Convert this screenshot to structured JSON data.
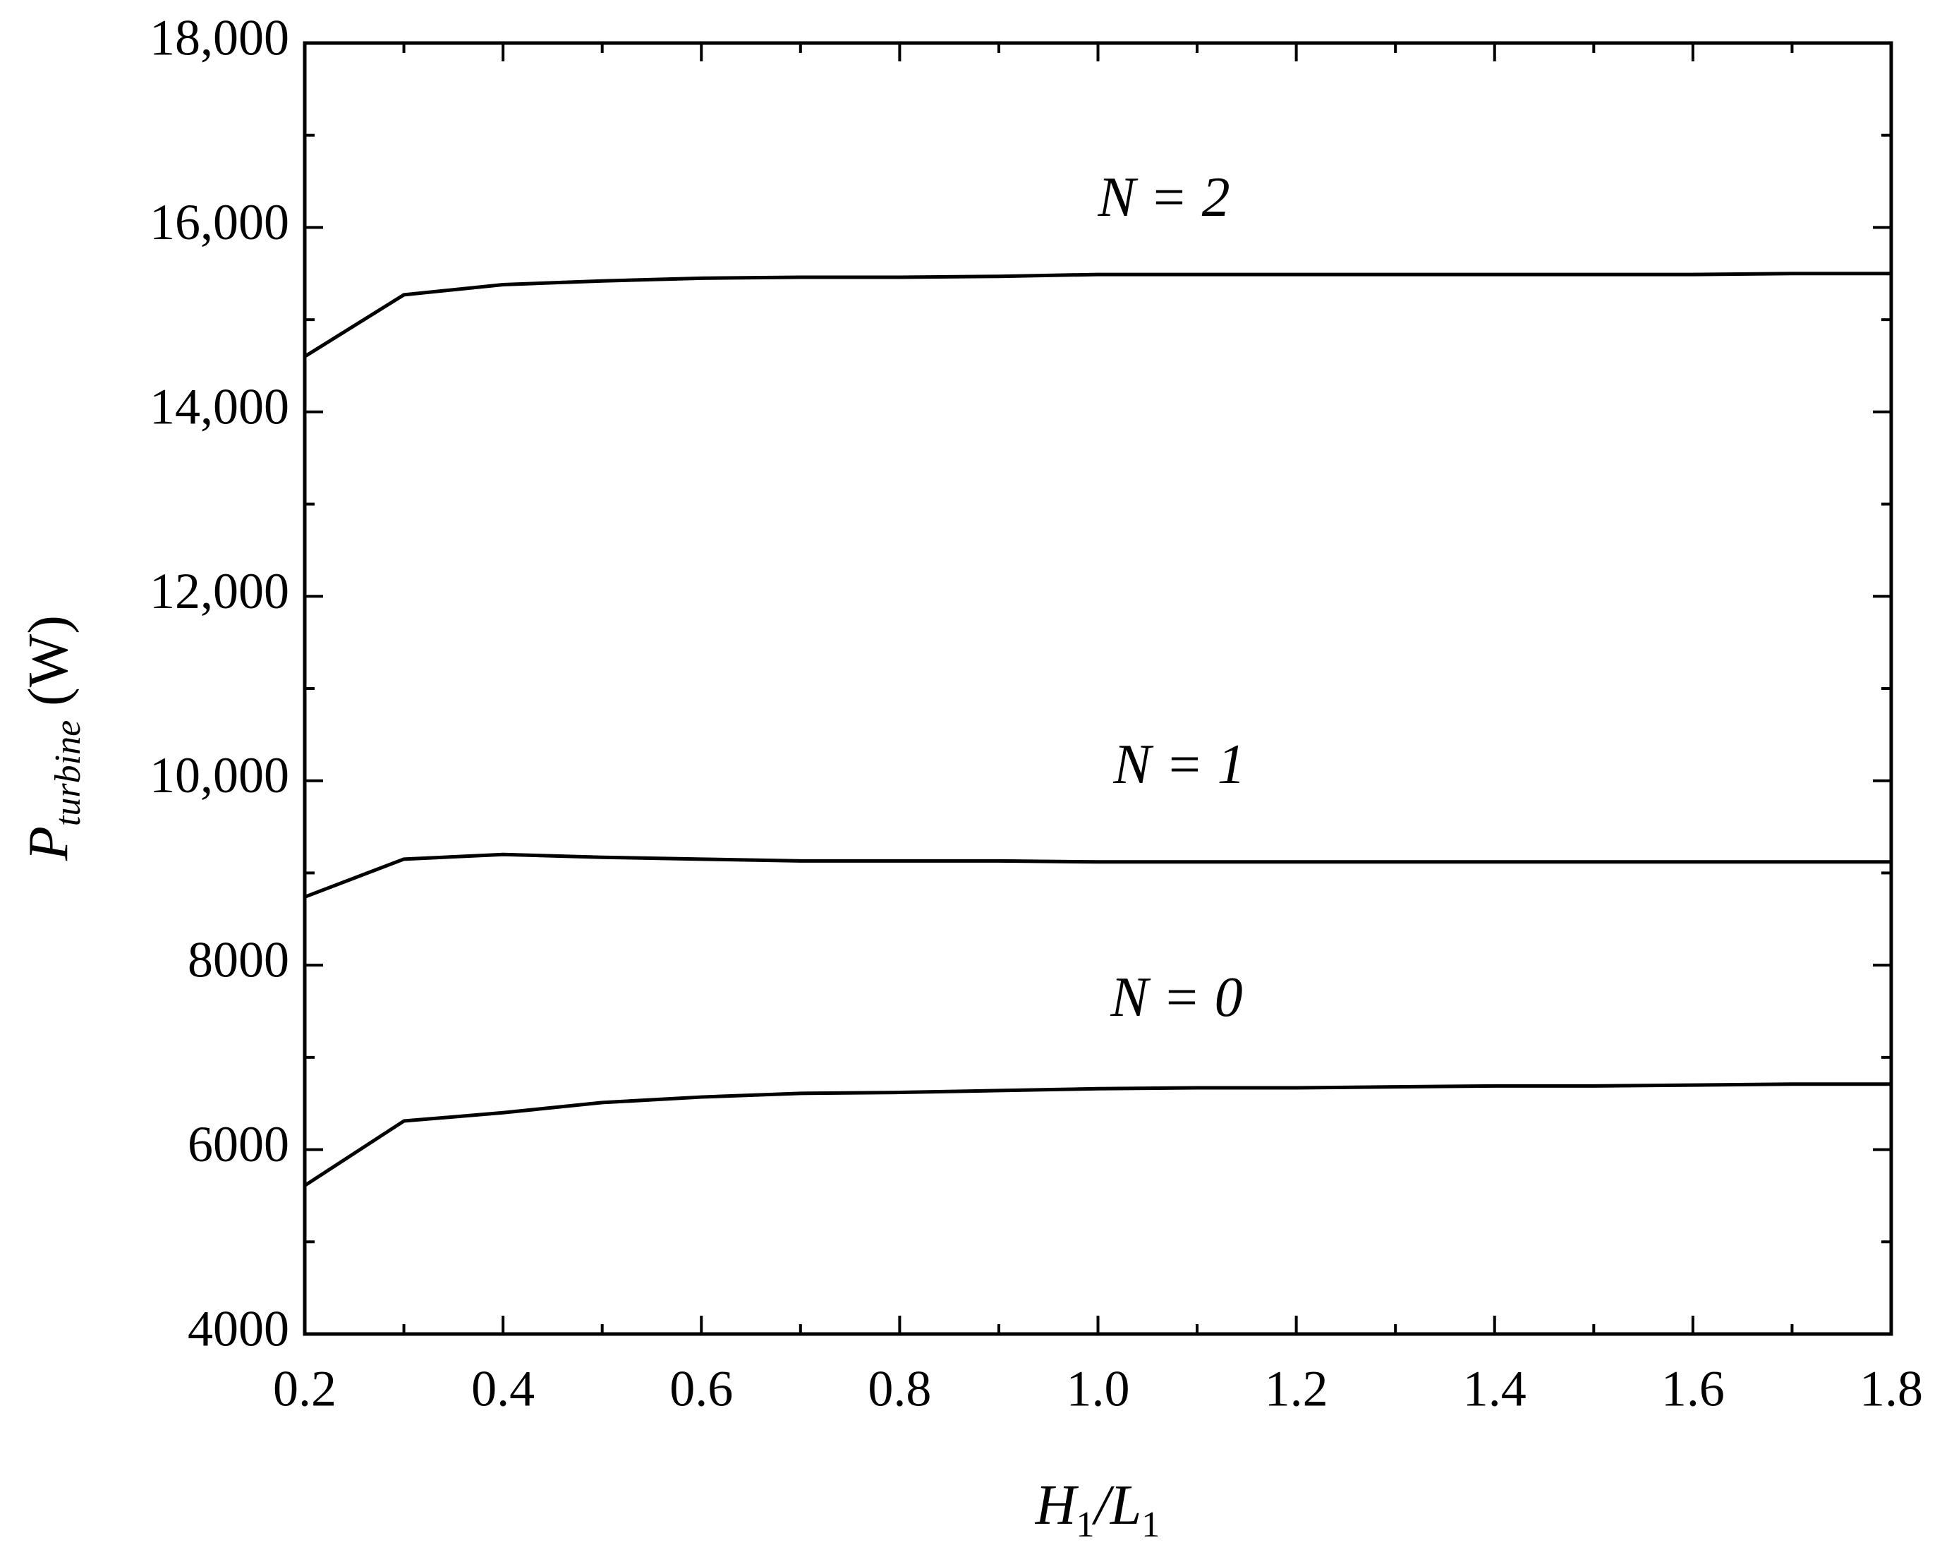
{
  "chart_data": {
    "type": "line",
    "xlabel": [
      "H",
      "1",
      "/L",
      "1"
    ],
    "ylabel": [
      "P",
      "turbine",
      " (W)"
    ],
    "x": [
      0.2,
      0.3,
      0.4,
      0.5,
      0.6,
      0.7,
      0.8,
      0.9,
      1.0,
      1.1,
      1.2,
      1.3,
      1.4,
      1.5,
      1.6,
      1.7,
      1.8
    ],
    "series": [
      {
        "name": "N = 0",
        "color": "#000000",
        "values": [
          5610,
          6310,
          6400,
          6510,
          6570,
          6610,
          6620,
          6640,
          6660,
          6670,
          6670,
          6680,
          6690,
          6690,
          6700,
          6710,
          6710
        ]
      },
      {
        "name": "N = 1",
        "color": "#000000",
        "values": [
          8740,
          9150,
          9200,
          9170,
          9150,
          9130,
          9130,
          9130,
          9120,
          9120,
          9120,
          9120,
          9120,
          9120,
          9120,
          9120,
          9120
        ]
      },
      {
        "name": "N = 2",
        "color": "#000000",
        "values": [
          14600,
          15270,
          15380,
          15420,
          15450,
          15460,
          15460,
          15470,
          15490,
          15490,
          15490,
          15490,
          15490,
          15490,
          15490,
          15500,
          15500
        ]
      }
    ],
    "xlim": [
      0.2,
      1.8
    ],
    "ylim": [
      4000,
      18000
    ],
    "xticks": [
      0.2,
      0.4,
      0.6,
      0.8,
      {
        "value": 1,
        "label": "1.0"
      },
      1.2,
      1.4,
      1.6,
      1.8
    ],
    "xminorticks": [
      0.3,
      0.5,
      0.7,
      0.9,
      1.1,
      1.3,
      1.5,
      1.7
    ],
    "yticks": [
      4000,
      6000,
      8000,
      {
        "value": 10000,
        "label": "10,000"
      },
      {
        "value": 12000,
        "label": "12,000"
      },
      {
        "value": 14000,
        "label": "14,000"
      },
      {
        "value": 16000,
        "label": "16,000"
      },
      {
        "value": 18000,
        "label": "18,000"
      }
    ],
    "yminorticks": [
      5000,
      7000,
      9000,
      11000,
      13000,
      15000,
      17000
    ],
    "grid": false
  }
}
